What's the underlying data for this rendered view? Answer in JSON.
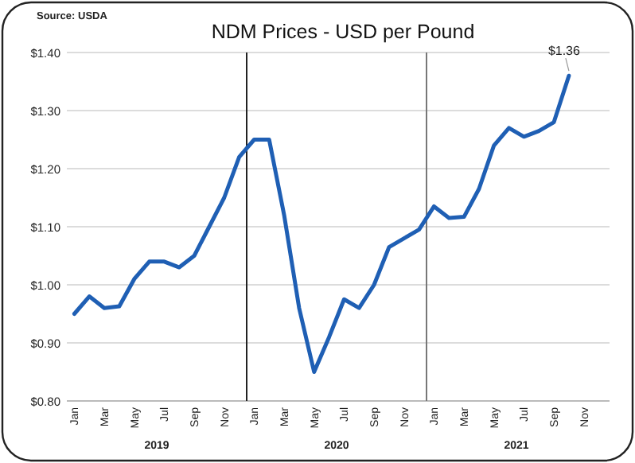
{
  "chart_data": {
    "type": "line",
    "title": "NDM Prices - USD per Pound",
    "annotations": [
      "Source: USDA",
      "2019",
      "2020",
      "2021"
    ],
    "categories": [
      "Jan",
      null,
      "Mar",
      null,
      "May",
      null,
      "Jul",
      null,
      "Sep",
      null,
      "Nov",
      null,
      "Jan",
      null,
      "Mar",
      null,
      "May",
      null,
      "Jul",
      null,
      "Sep",
      null,
      "Nov",
      null,
      "Jan",
      null,
      "Mar",
      null,
      "May",
      null,
      "Jul",
      null,
      "Sep",
      null,
      "Nov",
      null
    ],
    "series": [
      {
        "color": "#1f5fb4",
        "values": [
          0.95,
          0.98,
          0.96,
          0.963,
          1.01,
          1.04,
          1.04,
          1.03,
          1.05,
          1.1,
          1.15,
          1.22,
          1.25,
          1.25,
          1.12,
          0.96,
          0.85,
          0.91,
          0.975,
          0.96,
          1.0,
          1.065,
          1.08,
          1.095,
          1.135,
          1.115,
          1.117,
          1.165,
          1.24,
          1.27,
          1.255,
          1.265,
          1.28,
          1.36,
          null,
          null
        ],
        "value_labels": [
          null,
          null,
          null,
          null,
          null,
          null,
          null,
          null,
          null,
          null,
          null,
          null,
          null,
          null,
          null,
          null,
          null,
          null,
          null,
          null,
          null,
          null,
          null,
          null,
          null,
          null,
          null,
          null,
          null,
          null,
          null,
          null,
          null,
          "$1.36",
          null,
          null
        ]
      }
    ],
    "ylim": [
      0.8,
      1.4
    ],
    "yticks": [
      {
        "value": 0.8,
        "label": "$0.80"
      },
      {
        "value": 0.9,
        "label": "$0.90"
      },
      {
        "value": 1.0,
        "label": "$1.00"
      },
      {
        "value": 1.1,
        "label": "$1.10"
      },
      {
        "value": 1.2,
        "label": "$1.20"
      },
      {
        "value": 1.3,
        "label": "$1.30"
      },
      {
        "value": 1.4,
        "label": "$1.40"
      }
    ],
    "grid": "y",
    "marker": "none",
    "line_style": "solid"
  }
}
